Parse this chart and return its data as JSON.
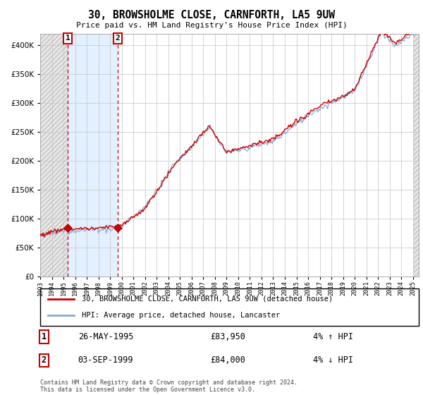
{
  "title": "30, BROWSHOLME CLOSE, CARNFORTH, LA5 9UW",
  "subtitle": "Price paid vs. HM Land Registry's House Price Index (HPI)",
  "ytick_values": [
    0,
    50000,
    100000,
    150000,
    200000,
    250000,
    300000,
    350000,
    400000
  ],
  "ylim": [
    0,
    420000
  ],
  "xlim_start": 1993,
  "xlim_end": 2025.5,
  "sale1_year": 1995.37,
  "sale1_price": 83950,
  "sale2_year": 1999.67,
  "sale2_price": 84000,
  "sale1_label": "26-MAY-1995",
  "sale1_amount": "£83,950",
  "sale1_hpi": "4% ↑ HPI",
  "sale2_label": "03-SEP-1999",
  "sale2_amount": "£84,000",
  "sale2_hpi": "4% ↓ HPI",
  "legend_line1": "30, BROWSHOLME CLOSE, CARNFORTH, LA5 9UW (detached house)",
  "legend_line2": "HPI: Average price, detached house, Lancaster",
  "footer": "Contains HM Land Registry data © Crown copyright and database right 2024.\nThis data is licensed under the Open Government Licence v3.0.",
  "price_line_color": "#cc0000",
  "hpi_line_color": "#88aacc",
  "sale_dot_color": "#cc0000",
  "hatch_bg_color": "#e0e0e0",
  "highlight_bg_color": "#ddeeff"
}
